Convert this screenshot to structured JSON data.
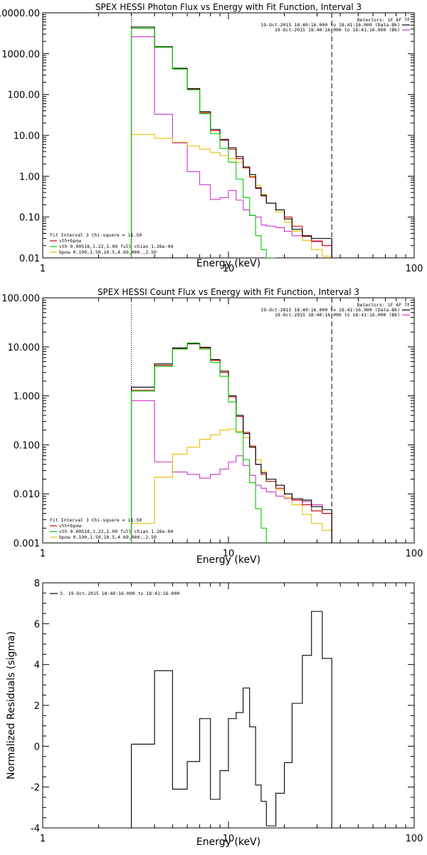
{
  "colors": {
    "background": "#ffffff",
    "axes": "#000000",
    "data": "#000000",
    "total_fit": "#cc0000",
    "vth": "#00cc00",
    "bpow": "#e6bf00",
    "background_spectrum": "#cc33cc"
  },
  "chart_data": [
    {
      "type": "line",
      "title": "SPEX HESSI Photon Flux vs Energy with Fit Function, Interval 3",
      "xlabel": "Energy (keV)",
      "ylabel": "",
      "xscale": "log",
      "yscale": "log",
      "xlim": [
        1,
        100
      ],
      "ylim": [
        0.01,
        10000
      ],
      "xtick_labels": [
        "1",
        "10",
        "100"
      ],
      "ytick_labels": [
        "0.01",
        "0.10",
        "1.00",
        "10.00",
        "100.00",
        "1000.00",
        "10000.00"
      ],
      "legend_title": "Detectors: 1F 6F 7F",
      "legend_placement": "top-right",
      "legend": [
        {
          "label": "19-Oct-2015 18:40:16.000 to 18:41:16.000 (Data-Bk)",
          "color": "#000000"
        },
        {
          "label": "19-Oct-2015 18:40:16.000 to 18:41:16.000 (Bk)",
          "color": "#cc33cc"
        }
      ],
      "fit_legend_title": "Fit Interval 3   Chi-square = 11.50",
      "fit_legend": [
        {
          "label": "vth+bpow",
          "color": "#cc0000"
        },
        {
          "label": "vth 0.00518,1.22,1.00  full chian 1.26e-04",
          "color": "#00cc00"
        },
        {
          "label": "bpow 0.190,1.50,10.5,4.69,400.,2.50",
          "color": "#e6bf00"
        }
      ],
      "vertical_markers": [
        {
          "x": 3,
          "style": "dotted"
        },
        {
          "x": 36,
          "style": "dashed"
        }
      ],
      "edges": [
        3,
        4,
        5,
        6,
        7,
        8,
        9,
        10,
        11,
        12,
        13,
        14,
        15,
        16,
        18,
        20,
        22,
        25,
        28,
        32,
        36
      ],
      "series": [
        {
          "name": "Data-Bk",
          "color": "#000000",
          "values": [
            4500,
            1480,
            440,
            140,
            38,
            14,
            8,
            5.0,
            3.0,
            1.7,
            1.1,
            0.52,
            0.34,
            0.22,
            0.15,
            0.09,
            0.05,
            0.034,
            0.03,
            0.03
          ]
        },
        {
          "name": "vth+bpow",
          "color": "#cc0000",
          "values": [
            4200,
            1450,
            430,
            135,
            36,
            13,
            7.5,
            4.6,
            2.7,
            1.6,
            0.95,
            0.5,
            0.33,
            0.22,
            0.15,
            0.1,
            0.06,
            0.035,
            0.026,
            0.02
          ]
        },
        {
          "name": "vth",
          "color": "#00cc00",
          "values": [
            4200,
            1440,
            420,
            130,
            34,
            11,
            4.8,
            2.2,
            0.85,
            0.3,
            0.11,
            0.035,
            0.016,
            0.01
          ]
        },
        {
          "name": "bpow",
          "color": "#e6bf00",
          "values": [
            10.5,
            8.5,
            6.8,
            5.5,
            4.6,
            3.8,
            3.2,
            2.7,
            2.2,
            1.6,
            1.0,
            0.6,
            0.36,
            0.22,
            0.13,
            0.075,
            0.045,
            0.027,
            0.016,
            0.011
          ]
        },
        {
          "name": "Bk",
          "color": "#cc33cc",
          "values": [
            2600,
            33,
            6.5,
            1.3,
            0.62,
            0.27,
            0.3,
            0.45,
            0.26,
            0.15,
            0.11,
            0.1,
            0.064,
            0.06,
            0.055,
            0.045,
            0.035,
            0.035,
            0.025,
            0.02
          ]
        }
      ]
    },
    {
      "type": "line",
      "title": "SPEX HESSI Count Flux vs Energy with Fit Function, Interval 3",
      "xlabel": "Energy (keV)",
      "ylabel": "",
      "xscale": "log",
      "yscale": "log",
      "xlim": [
        1,
        100
      ],
      "ylim": [
        0.001,
        100
      ],
      "xtick_labels": [
        "1",
        "10",
        "100"
      ],
      "ytick_labels": [
        "0.001",
        "0.010",
        "0.100",
        "1.000",
        "10.000",
        "100.000"
      ],
      "legend_title": "Detectors: 1F 6F 7F",
      "legend_placement": "top-right",
      "legend": [
        {
          "label": "19-Oct-2015 18:40:16.000 to 18:41:16.000 (Data-Bk)",
          "color": "#000000"
        },
        {
          "label": "19-Oct-2015 18:40:16.000 to 18:41:16.000 (Bk)",
          "color": "#cc33cc"
        }
      ],
      "fit_legend_title": "Fit Interval 3   Chi-square = 11.50",
      "fit_legend": [
        {
          "label": "vth+bpow",
          "color": "#cc0000"
        },
        {
          "label": "vth 0.00518,1.22,1.00  full chian 1.26e-04",
          "color": "#00cc00"
        },
        {
          "label": "bpow 0.190,1.50,10.5,4.69,400.,2.50",
          "color": "#e6bf00"
        }
      ],
      "vertical_markers": [
        {
          "x": 3,
          "style": "dotted"
        },
        {
          "x": 36,
          "style": "dashed"
        }
      ],
      "edges": [
        3,
        4,
        5,
        6,
        7,
        8,
        9,
        10,
        11,
        12,
        13,
        14,
        15,
        16,
        18,
        20,
        22,
        25,
        28,
        32,
        36
      ],
      "series": [
        {
          "name": "Data-Bk",
          "color": "#000000",
          "values": [
            1.5,
            4.5,
            9.5,
            11.5,
            9.8,
            5.5,
            3.2,
            1.0,
            0.4,
            0.17,
            0.09,
            0.04,
            0.027,
            0.02,
            0.015,
            0.01,
            0.008,
            0.0075,
            0.0055,
            0.0048
          ]
        },
        {
          "name": "vth+bpow",
          "color": "#cc0000",
          "values": [
            1.3,
            4.2,
            9.3,
            11.8,
            9.5,
            5.3,
            3.0,
            0.95,
            0.38,
            0.18,
            0.095,
            0.04,
            0.025,
            0.018,
            0.013,
            0.01,
            0.0075,
            0.006,
            0.0045,
            0.004
          ]
        },
        {
          "name": "vth",
          "color": "#00cc00",
          "values": [
            1.25,
            4.0,
            9.0,
            12.0,
            9.0,
            4.8,
            2.5,
            0.75,
            0.18,
            0.05,
            0.017,
            0.005,
            0.002
          ]
        },
        {
          "name": "bpow",
          "color": "#e6bf00",
          "values": [
            0.0025,
            0.022,
            0.065,
            0.09,
            0.13,
            0.16,
            0.2,
            0.21,
            0.19,
            0.14,
            0.09,
            0.05,
            0.029,
            0.018,
            0.012,
            0.0085,
            0.006,
            0.0038,
            0.0025,
            0.0018
          ]
        },
        {
          "name": "Bk",
          "color": "#cc33cc",
          "values": [
            0.8,
            0.045,
            0.028,
            0.025,
            0.021,
            0.025,
            0.032,
            0.045,
            0.06,
            0.038,
            0.024,
            0.015,
            0.013,
            0.011,
            0.009,
            0.008,
            0.0075,
            0.007,
            0.006,
            0.004
          ]
        }
      ]
    },
    {
      "type": "line",
      "title": "",
      "xlabel": "Energy (keV)",
      "ylabel": "Normalized Residuals (sigma)",
      "xscale": "log",
      "yscale": "linear",
      "xlim": [
        1,
        100
      ],
      "ylim": [
        -4,
        8
      ],
      "xtick_labels": [
        "1",
        "10",
        "100"
      ],
      "ytick_labels": [
        "-4",
        "-2",
        "0",
        "2",
        "4",
        "6",
        "8"
      ],
      "legend_placement": "top-left",
      "legend": [
        {
          "label": "3. 19-Oct-2015 18:40:16.000 to 18:41:16.000",
          "color": "#000000"
        }
      ],
      "edges": [
        3,
        4,
        5,
        6,
        7,
        8,
        9,
        10,
        11,
        12,
        13,
        14,
        15,
        16,
        18,
        20,
        22,
        25,
        28,
        32,
        36
      ],
      "series": [
        {
          "name": "3. 19-Oct-2015 18:40:16.000 to 18:41:16.000",
          "color": "#000000",
          "values": [
            0.1,
            3.7,
            -2.1,
            -0.75,
            1.35,
            -2.6,
            -1.2,
            1.35,
            1.65,
            2.85,
            0.95,
            -1.9,
            -2.7,
            -3.9,
            -2.3,
            -0.8,
            2.1,
            4.45,
            6.6,
            4.3
          ]
        }
      ]
    }
  ]
}
